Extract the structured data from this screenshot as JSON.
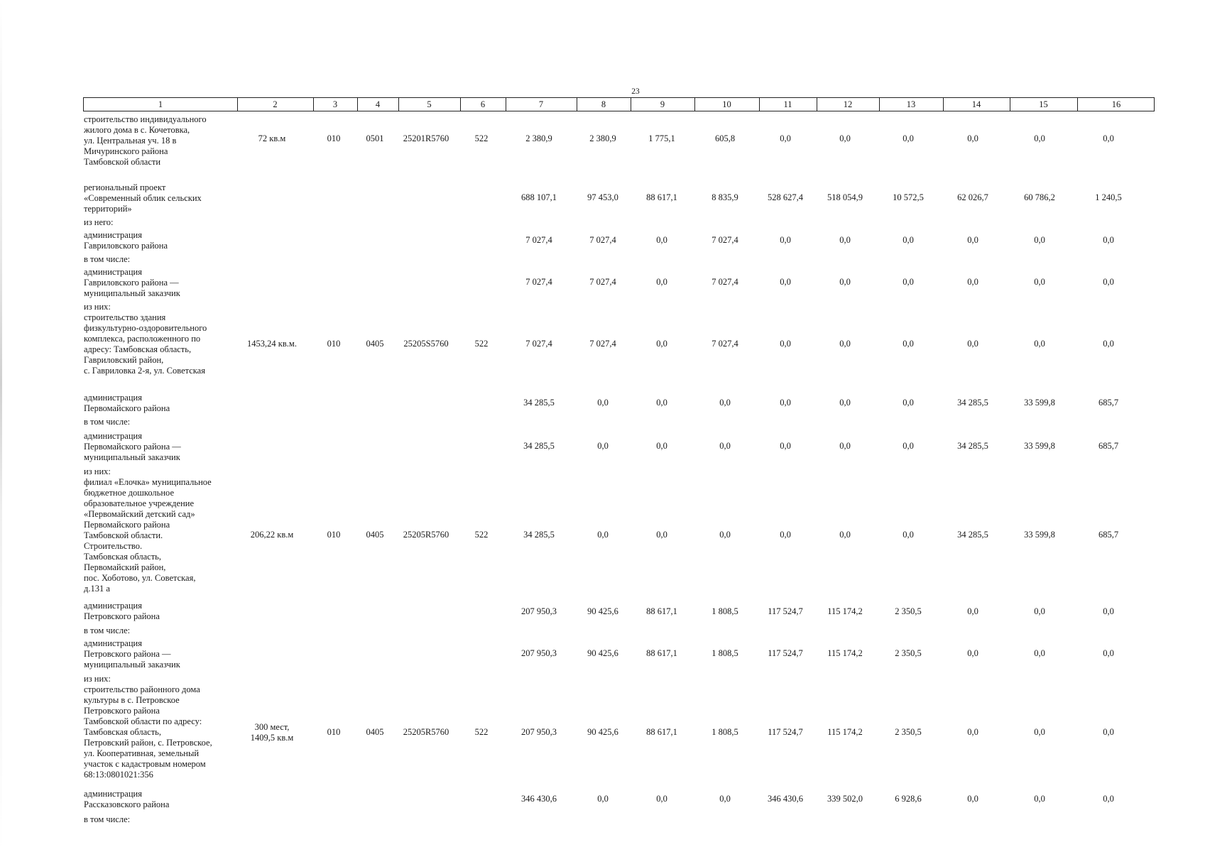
{
  "page_number": "23",
  "columns": [
    "1",
    "2",
    "3",
    "4",
    "5",
    "6",
    "7",
    "8",
    "9",
    "10",
    "11",
    "12",
    "13",
    "14",
    "15",
    "16"
  ],
  "rows": [
    {
      "text": "строительство индивидуального\nжилого дома в с. Кочетовка,\nул. Центральная уч. 18 в\nМичуринского района\nТамбовской области",
      "top": 161,
      "vtop": 188,
      "c2": "72 кв.м",
      "c3": "010",
      "c4": "0501",
      "c5": "25201R5760",
      "c6": "522",
      "v": [
        "2 380,9",
        "2 380,9",
        "1 775,1",
        "605,8",
        "0,0",
        "0,0",
        "0,0",
        "0,0",
        "0,0",
        "0,0"
      ]
    },
    {
      "text": "региональный проект\n«Современный облик сельских\nтерриторий»",
      "top": 257,
      "vtop": 271,
      "v": [
        "688 107,1",
        "97 453,0",
        "88 617,1",
        "8 835,9",
        "528 627,4",
        "518 054,9",
        "10 572,5",
        "62 026,7",
        "60 786,2",
        "1 240,5"
      ]
    },
    {
      "text": "из него:",
      "top": 306
    },
    {
      "text": "администрация\nГавриловского района",
      "top": 324,
      "vtop": 331,
      "v": [
        "7 027,4",
        "7 027,4",
        "0,0",
        "7 027,4",
        "0,0",
        "0,0",
        "0,0",
        "0,0",
        "0,0",
        "0,0"
      ]
    },
    {
      "text": "в том числе:",
      "top": 358
    },
    {
      "text": "администрация\nГавриловского района —\nмуниципальный заказчик",
      "top": 376,
      "vtop": 390,
      "v": [
        "7 027,4",
        "7 027,4",
        "0,0",
        "7 027,4",
        "0,0",
        "0,0",
        "0,0",
        "0,0",
        "0,0",
        "0,0"
      ]
    },
    {
      "text": "из них:\nстроительство здания\nфизкультурно-оздоровительного\nкомплекса, расположенного по\nадресу: Тамбовская область,\nГавриловский район,\nс. Гавриловка 2-я, ул. Советская",
      "top": 425,
      "vtop": 477,
      "c2": "1453,24 кв.м.",
      "c3": "010",
      "c4": "0405",
      "c5": "25205S5760",
      "c6": "522",
      "v": [
        "7 027,4",
        "7 027,4",
        "0,0",
        "7 027,4",
        "0,0",
        "0,0",
        "0,0",
        "0,0",
        "0,0",
        "0,0"
      ]
    },
    {
      "text": "администрация\nПервомайского района",
      "top": 553,
      "vtop": 560,
      "v": [
        "34 285,5",
        "0,0",
        "0,0",
        "0,0",
        "0,0",
        "0,0",
        "0,0",
        "34 285,5",
        "33 599,8",
        "685,7"
      ]
    },
    {
      "text": "в том числе:",
      "top": 587
    },
    {
      "text": "администрация\nПервомайского района —\nмуниципальный заказчик",
      "top": 607,
      "vtop": 621,
      "v": [
        "34 285,5",
        "0,0",
        "0,0",
        "0,0",
        "0,0",
        "0,0",
        "0,0",
        "34 285,5",
        "33 599,8",
        "685,7"
      ]
    },
    {
      "text": "из них:\nфилиал «Елочка» муниципальное\nбюджетное дошкольное\nобразовательное учреждение\n«Первомайский детский сад»\nПервомайского района\nТамбовской области.\nСтроительство.\nТамбовская область,\nПервомайский район,\nпос. Хоботово, ул. Советская,\nд.131 а",
      "top": 657,
      "vtop": 746,
      "c2": "206,22 кв.м",
      "c3": "010",
      "c4": "0405",
      "c5": "25205R5760",
      "c6": "522",
      "v": [
        "34 285,5",
        "0,0",
        "0,0",
        "0,0",
        "0,0",
        "0,0",
        "0,0",
        "34 285,5",
        "33 599,8",
        "685,7"
      ]
    },
    {
      "text": "администрация\nПетровского района",
      "top": 846,
      "vtop": 854,
      "v": [
        "207 950,3",
        "90 425,6",
        "88 617,1",
        "1 808,5",
        "117 524,7",
        "115 174,2",
        "2 350,5",
        "0,0",
        "0,0",
        "0,0"
      ]
    },
    {
      "text": "в том числе:",
      "top": 881
    },
    {
      "text": "администрация\nПетровского района —\nмуниципальный заказчик",
      "top": 899,
      "vtop": 913,
      "v": [
        "207 950,3",
        "90 425,6",
        "88 617,1",
        "1 808,5",
        "117 524,7",
        "115 174,2",
        "2 350,5",
        "0,0",
        "0,0",
        "0,0"
      ]
    },
    {
      "text": "из них:\nстроительство районного дома\nкультуры в с. Петровское\nПетровского района\nТамбовской области по адресу:\nТамбовская область,\nПетровский район, с. Петровское,\nул. Кооперативная, земельный\nучасток с кадастровым номером\n68:13:0801021:356",
      "top": 949,
      "vtop": 1024,
      "c2": "300 мест,\n1409,5 кв.м",
      "c3": "010",
      "c4": "0405",
      "c5": "25205R5760",
      "c6": "522",
      "v": [
        "207 950,3",
        "90 425,6",
        "88 617,1",
        "1 808,5",
        "117 524,7",
        "115 174,2",
        "2 350,5",
        "0,0",
        "0,0",
        "0,0"
      ]
    },
    {
      "text": "администрация\nРассказовского района",
      "top": 1111,
      "vtop": 1118,
      "v": [
        "346 430,6",
        "0,0",
        "0,0",
        "0,0",
        "346 430,6",
        "339 502,0",
        "6 928,6",
        "0,0",
        "0,0",
        "0,0"
      ]
    },
    {
      "text": "в том числе:",
      "top": 1147
    }
  ]
}
